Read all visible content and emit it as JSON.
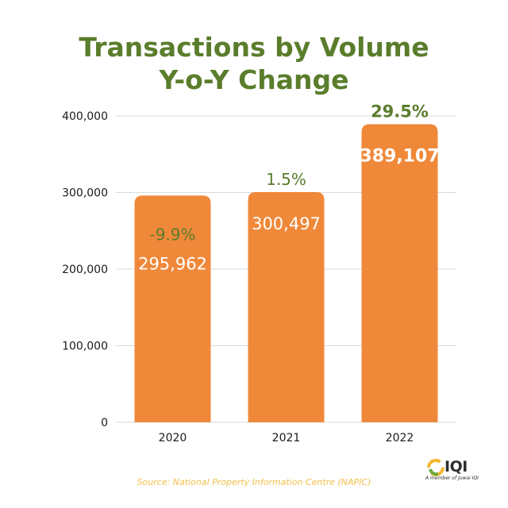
{
  "chart_data": {
    "type": "bar",
    "title_lines": [
      "Transactions by Volume",
      "Y-o-Y Change"
    ],
    "categories": [
      "2020",
      "2021",
      "2022"
    ],
    "values": [
      295962,
      300497,
      389107
    ],
    "value_labels": [
      "295,962",
      "300,497",
      "389,107"
    ],
    "change_labels": [
      "-9.9%",
      "1.5%",
      "29.5%"
    ],
    "y_ticks": [
      "0",
      "100,000",
      "200,000",
      "300,000",
      "400,000"
    ],
    "ylim": [
      0,
      400000
    ],
    "grid": true,
    "colors": {
      "bar": "#f0883a",
      "title": "#5a7d2c",
      "change_label": "#5a7d2c",
      "source": "#f2c04c"
    }
  },
  "source": "Source: National Property Information Centre (NAPIC)",
  "logo": {
    "name": "IQI",
    "text": "IQI",
    "tagline": "A member of Juwai IQI"
  }
}
